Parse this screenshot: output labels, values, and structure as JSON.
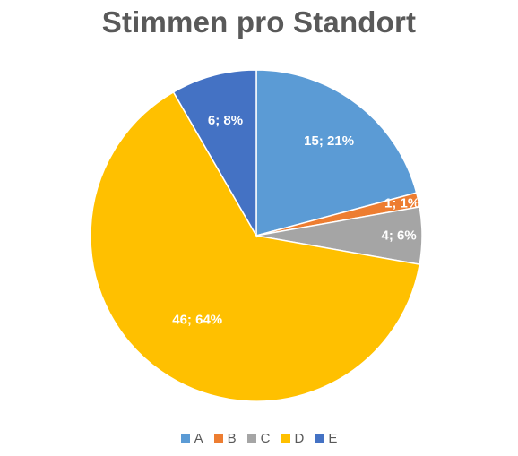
{
  "chart_data": {
    "type": "pie",
    "title": "Stimmen pro Standort",
    "categories": [
      "A",
      "B",
      "C",
      "D",
      "E"
    ],
    "values": [
      15,
      1,
      4,
      46,
      6
    ],
    "labels": [
      "15; 21%",
      "1; 1%",
      "4; 6%",
      "46; 64%",
      "6; 8%"
    ],
    "colors": [
      "#5B9BD5",
      "#ED7D31",
      "#A5A5A5",
      "#FFC000",
      "#4472C4"
    ],
    "start_angle_deg": 0,
    "direction": "clockwise",
    "legend_position": "bottom"
  }
}
